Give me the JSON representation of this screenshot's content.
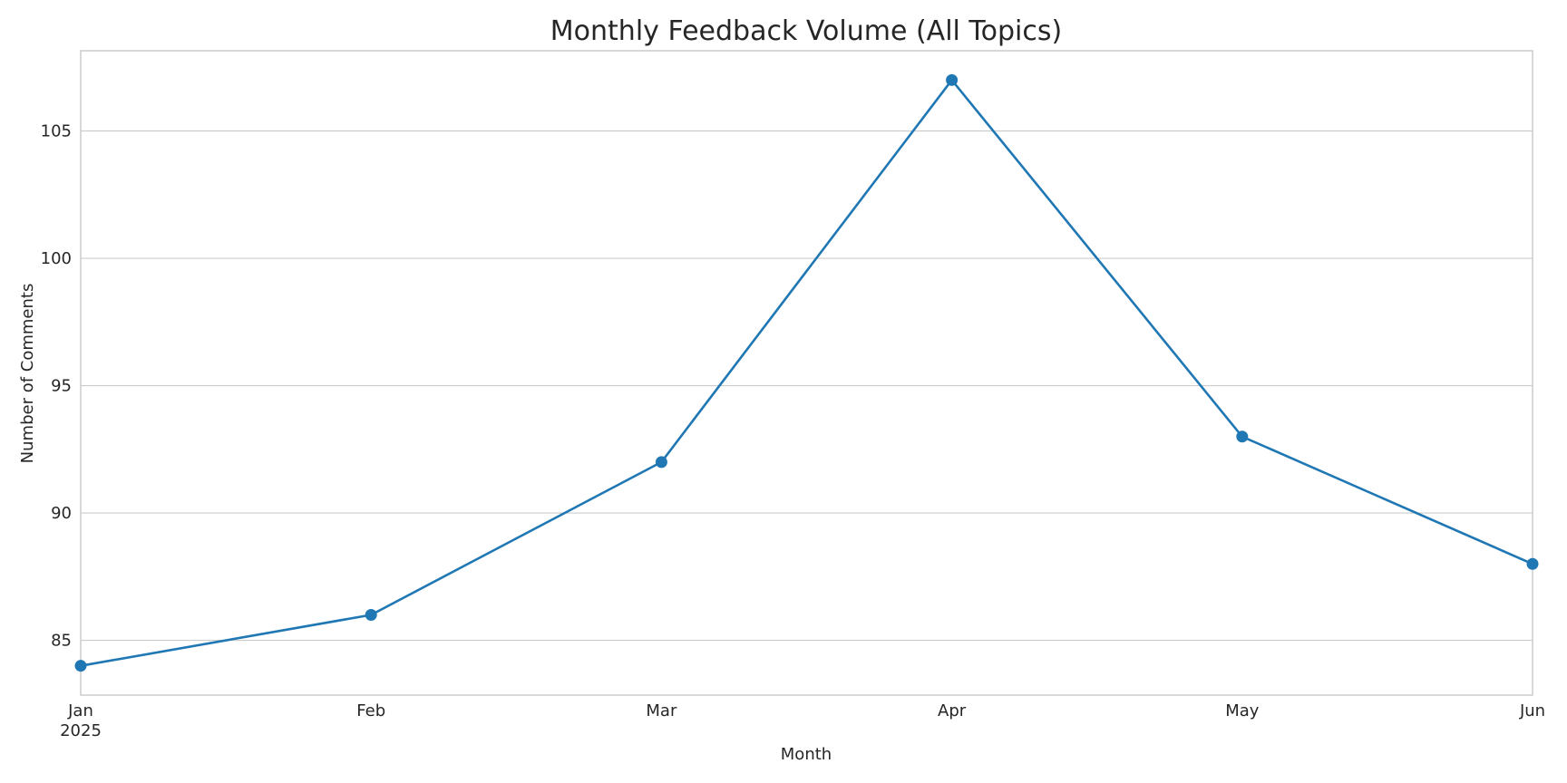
{
  "chart_data": {
    "type": "line",
    "title": "Monthly Feedback Volume (All Topics)",
    "xlabel": "Month",
    "ylabel": "Number of Comments",
    "x": [
      "Jan",
      "Feb",
      "Mar",
      "Apr",
      "May",
      "Jun"
    ],
    "x_year_label": "2025",
    "series": [
      {
        "values": [
          84,
          86,
          92,
          107,
          93,
          88
        ],
        "color": "#1f77b4"
      }
    ],
    "ylim": [
      82.85,
      108.15
    ],
    "yticks": [
      85,
      90,
      95,
      100,
      105
    ],
    "grid": "horizontal",
    "marker": "circle"
  }
}
